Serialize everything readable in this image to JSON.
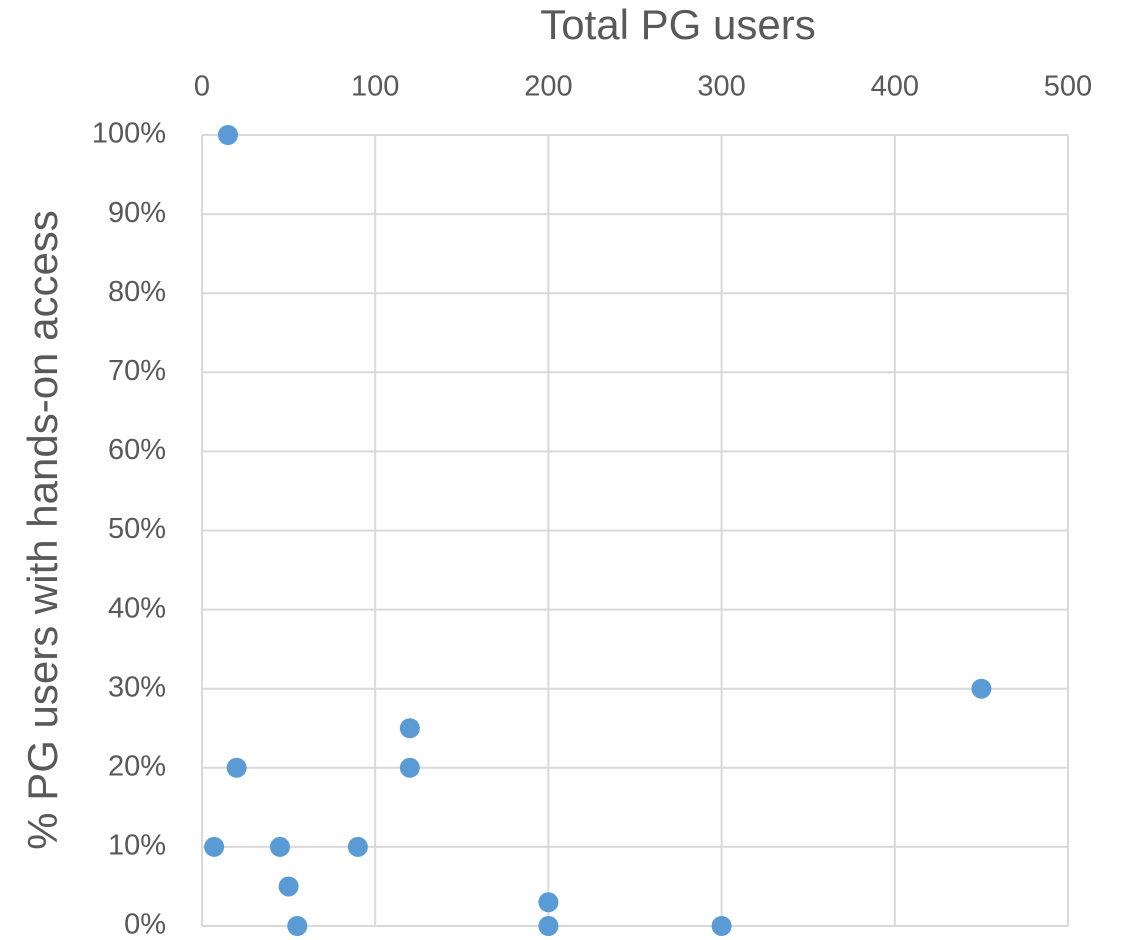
{
  "chart_data": {
    "type": "scatter",
    "xlabel": "Total PG users",
    "ylabel": "% PG users with hands-on access",
    "series": [
      {
        "color": "#5b9bd5",
        "x": [
          15,
          20,
          7,
          45,
          50,
          55,
          90,
          120,
          120,
          200,
          200,
          300,
          450
        ],
        "values": [
          100,
          20,
          10,
          10,
          5,
          0,
          10,
          25,
          20,
          3,
          0,
          0,
          30
        ]
      }
    ],
    "xlim": [
      0,
      500
    ],
    "xticks": [
      0,
      100,
      200,
      300,
      400,
      500
    ],
    "ylim": [
      0,
      100
    ],
    "yticks": [
      {
        "value": 0,
        "label": "0%"
      },
      {
        "value": 10,
        "label": "10%"
      },
      {
        "value": 20,
        "label": "20%"
      },
      {
        "value": 30,
        "label": "30%"
      },
      {
        "value": 40,
        "label": "40%"
      },
      {
        "value": 50,
        "label": "50%"
      },
      {
        "value": 60,
        "label": "60%"
      },
      {
        "value": 70,
        "label": "70%"
      },
      {
        "value": 80,
        "label": "80%"
      },
      {
        "value": 90,
        "label": "90%"
      },
      {
        "value": 100,
        "label": "100%"
      }
    ],
    "grid": true
  }
}
